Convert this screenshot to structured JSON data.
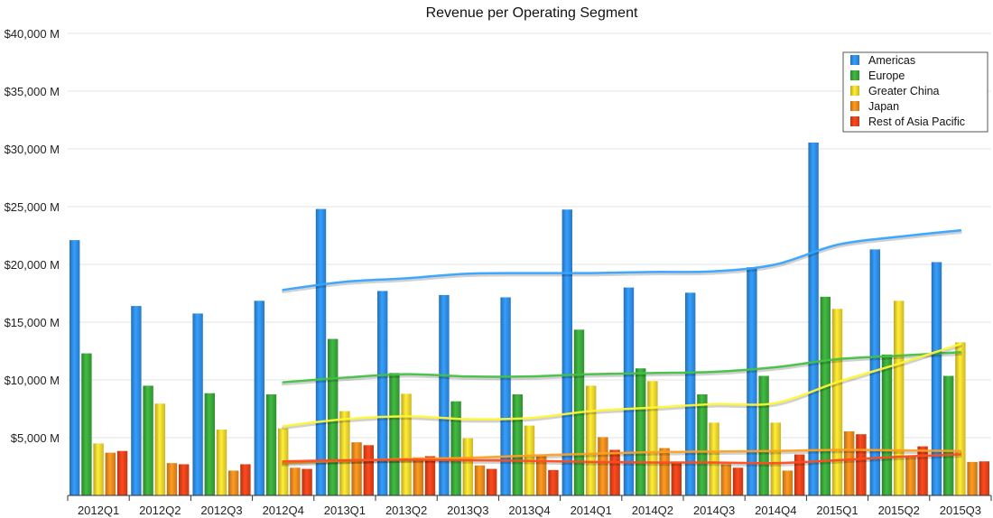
{
  "chart_data": {
    "type": "bar",
    "title": "Revenue per Operating Segment",
    "xlabel": "",
    "ylabel": "",
    "ylim": [
      0,
      40000
    ],
    "yticks": [
      5000,
      10000,
      15000,
      20000,
      25000,
      30000,
      35000,
      40000
    ],
    "ytick_labels": [
      "$5,000 M",
      "$10,000 M",
      "$15,000 M",
      "$20,000 M",
      "$25,000 M",
      "$30,000 M",
      "$35,000 M",
      "$40,000 M"
    ],
    "grid": true,
    "legend_position": "top-right",
    "categories": [
      "2012Q1",
      "2012Q2",
      "2012Q3",
      "2012Q4",
      "2013Q1",
      "2013Q2",
      "2013Q3",
      "2013Q4",
      "2014Q1",
      "2014Q2",
      "2014Q3",
      "2014Q4",
      "2015Q1",
      "2015Q2",
      "2015Q3"
    ],
    "series": [
      {
        "name": "Americas",
        "color": "#2f8ee6",
        "values": [
          22100,
          16400,
          15750,
          16850,
          24800,
          17700,
          17350,
          17150,
          24750,
          18000,
          17550,
          19750,
          30550,
          21300,
          20200
        ],
        "trend": [
          null,
          null,
          null,
          17800,
          18500,
          18800,
          19200,
          19250,
          19250,
          19350,
          19400,
          20000,
          21700,
          22400,
          22950
        ]
      },
      {
        "name": "Europe",
        "color": "#3aa83a",
        "values": [
          12300,
          9500,
          8850,
          8750,
          13550,
          10600,
          8150,
          8750,
          14350,
          11000,
          8750,
          10350,
          17200,
          12200,
          10350
        ],
        "trend": [
          null,
          null,
          null,
          9800,
          10200,
          10500,
          10300,
          10300,
          10500,
          10600,
          10700,
          11100,
          11800,
          12100,
          12400
        ]
      },
      {
        "name": "Greater China",
        "color": "#f2d52e",
        "values": [
          4500,
          7950,
          5700,
          5800,
          7300,
          8800,
          4950,
          6050,
          9500,
          9900,
          6300,
          6300,
          16150,
          16850,
          13250
        ],
        "trend": [
          null,
          null,
          null,
          6000,
          6600,
          6850,
          6600,
          6700,
          7300,
          7600,
          7900,
          8000,
          9800,
          11400,
          13100
        ]
      },
      {
        "name": "Japan",
        "color": "#ef8a1d",
        "values": [
          3700,
          2800,
          2150,
          2400,
          4600,
          3300,
          2600,
          3400,
          5050,
          4100,
          2700,
          2150,
          5550,
          3450,
          2900
        ],
        "trend": [
          null,
          null,
          null,
          2800,
          3000,
          3150,
          3250,
          3450,
          3600,
          3750,
          3800,
          3850,
          3950,
          3900,
          3850
        ]
      },
      {
        "name": "Rest of Asia Pacific",
        "color": "#e6421a",
        "values": [
          3850,
          2700,
          2700,
          2300,
          4350,
          3400,
          2300,
          2200,
          3950,
          2800,
          2400,
          3550,
          5300,
          4250,
          2950
        ],
        "trend": [
          null,
          null,
          null,
          2950,
          3050,
          3100,
          3050,
          3000,
          2900,
          2850,
          2850,
          2800,
          3050,
          3350,
          3550
        ]
      }
    ]
  }
}
